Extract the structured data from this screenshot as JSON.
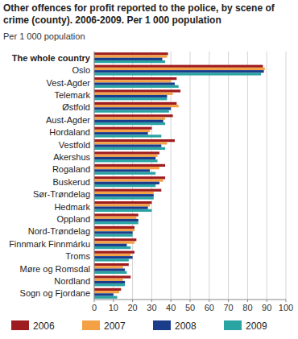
{
  "chart_data": {
    "type": "bar",
    "orientation": "horizontal",
    "title": "Other offences for profit reported to the police, by scene of crime (county). 2006-2009. Per 1 000 population",
    "subtitle": "Per 1 000 population",
    "categories": [
      "The whole country",
      "Oslo",
      "Vest-Agder",
      "Telemark",
      "Østfold",
      "Aust-Agder",
      "Hordaland",
      "Vestfold",
      "Akershus",
      "Rogaland",
      "Buskerud",
      "Sør-Trøndelag",
      "Hedmark",
      "Oppland",
      "Nord-Trøndelag",
      "Finnmark Finnmárku",
      "Troms",
      "Møre og Romsdal",
      "Nordland",
      "Sogn og Fjordane"
    ],
    "series": [
      {
        "name": "2006",
        "color": "#9e1b1f",
        "values": [
          38.5,
          88,
          43,
          45,
          43,
          41,
          30,
          42,
          34,
          37,
          37,
          35,
          30,
          23,
          21,
          22,
          21,
          18,
          19,
          14
        ]
      },
      {
        "name": "2007",
        "color": "#f4a145",
        "values": [
          38,
          89,
          40,
          41,
          44,
          37,
          29,
          38,
          33,
          34,
          36,
          31,
          29,
          22,
          21,
          21,
          19,
          15,
          15,
          13
        ]
      },
      {
        "name": "2008",
        "color": "#1b3b8b",
        "values": [
          35.5,
          88.5,
          42,
          38,
          40,
          36,
          28,
          35,
          32,
          29,
          34,
          31,
          28,
          23,
          20,
          17,
          20,
          16,
          16,
          10
        ]
      },
      {
        "name": "2009",
        "color": "#2aa3a3",
        "values": [
          37,
          87,
          44,
          38,
          39,
          37,
          35,
          37,
          33,
          32,
          32,
          31,
          30,
          23,
          20,
          19,
          18,
          17,
          16,
          12
        ]
      }
    ],
    "xlim": [
      0,
      100
    ],
    "xticks": [
      0,
      10,
      20,
      30,
      40,
      50,
      60,
      70,
      80,
      90,
      100
    ],
    "grid": true,
    "legend": "bottom"
  }
}
